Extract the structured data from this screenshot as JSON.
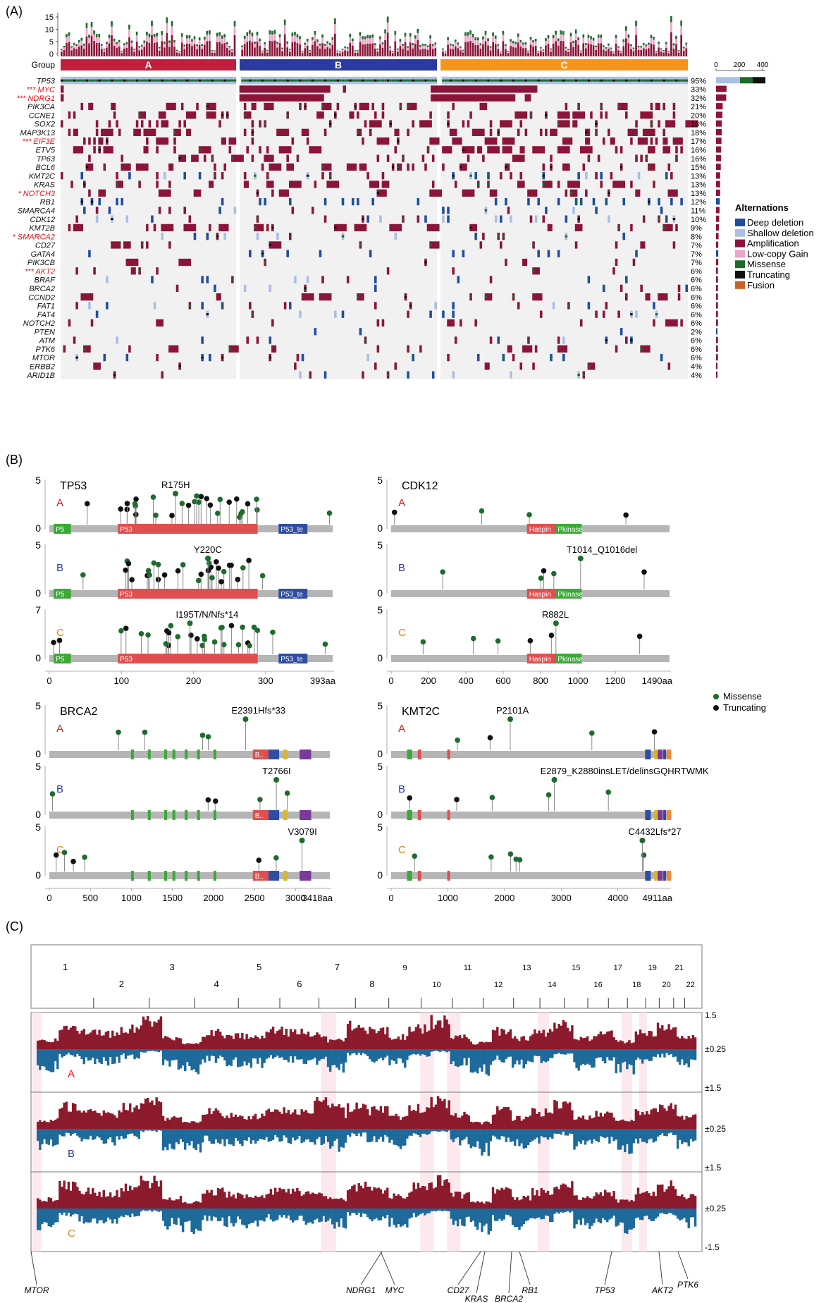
{
  "colors": {
    "deep_deletion": "#1f4e9c",
    "shallow_deletion": "#a9bfe6",
    "amplification": "#8b1538",
    "low_copy_gain": "#e9a6c9",
    "missense": "#1e6b2e",
    "truncating": "#111111",
    "fusion": "#c8622a",
    "group_a": "#c21f3e",
    "group_b": "#2b3a9e",
    "group_c": "#f7941d",
    "gain_cnv": "#8b1a2c",
    "loss_cnv": "#1d6a9b",
    "label_red": "#e8141c",
    "label_blue": "#2b3a9e",
    "label_orange": "#f07f14",
    "domain_p53": "#e04f4f",
    "domain_green": "#3aaa35",
    "domain_blue": "#2f4ea1",
    "domain_yellow": "#d9b62a",
    "domain_purple": "#7a3a9a",
    "domain_orange": "#f08a3a",
    "backbone": "#b5b5b5"
  },
  "panelA": {
    "label": "(A)",
    "group_label": "Group",
    "groups": [
      "A",
      "B",
      "C"
    ],
    "bar_ticks": [
      "15",
      "10",
      "5",
      "0"
    ],
    "scale_ticks": [
      "0",
      "200",
      "400"
    ],
    "legend_title": "Alternations",
    "legend_items": [
      {
        "label": "Deep deletion",
        "color": "deep_deletion"
      },
      {
        "label": "Shallow deletion",
        "color": "shallow_deletion"
      },
      {
        "label": "Amplification",
        "color": "amplification"
      },
      {
        "label": "Low-copy Gain",
        "color": "low_copy_gain"
      },
      {
        "label": "Missense",
        "color": "missense"
      },
      {
        "label": "Truncating",
        "color": "truncating"
      },
      {
        "label": "Fusion",
        "color": "fusion"
      }
    ],
    "genes": [
      {
        "name": "TP53",
        "pct": "95%",
        "red": false,
        "type": "tp53"
      },
      {
        "name": "*** MYC",
        "pct": "33%",
        "red": true,
        "type": "amp_block",
        "blocks": [
          [
            0.0,
            0.005
          ],
          [
            0.285,
            0.43
          ],
          [
            0.45,
            0.455
          ],
          [
            0.59,
            0.76
          ]
        ]
      },
      {
        "name": "*** NDRG1",
        "pct": "32%",
        "red": true,
        "type": "amp_block",
        "blocks": [
          [
            0.0,
            0.005
          ],
          [
            0.285,
            0.42
          ],
          [
            0.59,
            0.725
          ],
          [
            0.74,
            0.75
          ]
        ]
      },
      {
        "name": "PIK3CA",
        "pct": "21%",
        "red": false,
        "type": "sparse",
        "seed": 3,
        "density": 0.2
      },
      {
        "name": "CCNE1",
        "pct": "20%",
        "red": false,
        "type": "sparse",
        "seed": 5,
        "density": 0.2
      },
      {
        "name": "SOX2",
        "pct": "18%",
        "red": false,
        "type": "sparse",
        "seed": 7,
        "density": 0.18
      },
      {
        "name": "MAP3K13",
        "pct": "18%",
        "red": false,
        "type": "sparse",
        "seed": 11,
        "density": 0.18
      },
      {
        "name": "*** EIF3E",
        "pct": "17%",
        "red": true,
        "type": "sparse",
        "seed": 13,
        "density": 0.17
      },
      {
        "name": "ETV5",
        "pct": "16%",
        "red": false,
        "type": "sparse",
        "seed": 17,
        "density": 0.16
      },
      {
        "name": "TP63",
        "pct": "16%",
        "red": false,
        "type": "sparse",
        "seed": 19,
        "density": 0.16
      },
      {
        "name": "BCL6",
        "pct": "15%",
        "red": false,
        "type": "sparse",
        "seed": 23,
        "density": 0.15
      },
      {
        "name": "KMT2C",
        "pct": "13%",
        "red": false,
        "type": "mixed",
        "seed": 29,
        "density": 0.13
      },
      {
        "name": "KRAS",
        "pct": "13%",
        "red": false,
        "type": "sparse",
        "seed": 31,
        "density": 0.13
      },
      {
        "name": "* NOTCH3",
        "pct": "13%",
        "red": true,
        "type": "sparse",
        "seed": 37,
        "density": 0.13
      },
      {
        "name": "RB1",
        "pct": "12%",
        "red": false,
        "type": "del",
        "seed": 41,
        "density": 0.12
      },
      {
        "name": "SMARCA4",
        "pct": "11%",
        "red": false,
        "type": "mixed",
        "seed": 43,
        "density": 0.11
      },
      {
        "name": "CDK12",
        "pct": "10%",
        "red": false,
        "type": "mixed",
        "seed": 47,
        "density": 0.1
      },
      {
        "name": "KMT2B",
        "pct": "9%",
        "red": false,
        "type": "sparse",
        "seed": 53,
        "density": 0.09
      },
      {
        "name": "* SMARCA2",
        "pct": "8%",
        "red": true,
        "type": "mixed",
        "seed": 59,
        "density": 0.08
      },
      {
        "name": "CD27",
        "pct": "7%",
        "red": false,
        "type": "sparse",
        "seed": 61,
        "density": 0.07
      },
      {
        "name": "GATA4",
        "pct": "7%",
        "red": false,
        "type": "del",
        "seed": 67,
        "density": 0.07
      },
      {
        "name": "PIK3CB",
        "pct": "7%",
        "red": false,
        "type": "sparse",
        "seed": 71,
        "density": 0.07
      },
      {
        "name": "*** AKT2",
        "pct": "6%",
        "red": true,
        "type": "sparse",
        "seed": 73,
        "density": 0.06
      },
      {
        "name": "BRAF",
        "pct": "6%",
        "red": false,
        "type": "mixed",
        "seed": 79,
        "density": 0.06
      },
      {
        "name": "BRCA2",
        "pct": "6%",
        "red": false,
        "type": "mixed",
        "seed": 83,
        "density": 0.06
      },
      {
        "name": "CCND2",
        "pct": "6%",
        "red": false,
        "type": "sparse",
        "seed": 89,
        "density": 0.06
      },
      {
        "name": "FAT1",
        "pct": "6%",
        "red": false,
        "type": "mixed",
        "seed": 97,
        "density": 0.06
      },
      {
        "name": "FAT4",
        "pct": "6%",
        "red": false,
        "type": "mixed",
        "seed": 101,
        "density": 0.06
      },
      {
        "name": "NOTCH2",
        "pct": "6%",
        "red": false,
        "type": "sparse",
        "seed": 103,
        "density": 0.06
      },
      {
        "name": "PTEN",
        "pct": "2%",
        "red": false,
        "type": "del",
        "seed": 107,
        "density": 0.02
      },
      {
        "name": "ATM",
        "pct": "6%",
        "red": false,
        "type": "mixed",
        "seed": 109,
        "density": 0.06
      },
      {
        "name": "PTK6",
        "pct": "6%",
        "red": false,
        "type": "sparse",
        "seed": 113,
        "density": 0.06
      },
      {
        "name": "MTOR",
        "pct": "6%",
        "red": false,
        "type": "mixed",
        "seed": 127,
        "density": 0.06
      },
      {
        "name": "ERBB2",
        "pct": "4%",
        "red": false,
        "type": "sparse",
        "seed": 131,
        "density": 0.04
      },
      {
        "name": "ARID1B",
        "pct": "4%",
        "red": false,
        "type": "mixed",
        "seed": 137,
        "density": 0.04
      }
    ]
  },
  "panelB": {
    "label": "(B)",
    "legend": [
      {
        "label": "Missense",
        "color": "missense"
      },
      {
        "label": "Truncating",
        "color": "truncating"
      }
    ],
    "plots": [
      {
        "gene": "TP53",
        "length": 393,
        "axis_end_label": "393aa",
        "ticks": [
          "0",
          "100",
          "200",
          "300"
        ],
        "tick_vals": [
          0,
          100,
          200,
          300
        ],
        "tracks": [
          {
            "group": "A",
            "ymax": "5",
            "annotation": "R175H",
            "ann_pos": 175
          },
          {
            "group": "B",
            "ymax": "5",
            "annotation": "Y220C",
            "ann_pos": 220
          },
          {
            "group": "C",
            "ymax": "7",
            "annotation": "I195T/N/Nfs*14",
            "ann_pos": 195
          }
        ],
        "domains": [
          {
            "start": 6,
            "end": 30,
            "label": "P5",
            "color": "domain_green"
          },
          {
            "start": 95,
            "end": 289,
            "label": "P53",
            "color": "domain_p53"
          },
          {
            "start": 318,
            "end": 358,
            "label": "P53_te",
            "color": "domain_blue"
          }
        ]
      },
      {
        "gene": "CDK12",
        "length": 1490,
        "axis_end_label": "1490aa",
        "ticks": [
          "0",
          "200",
          "400",
          "600",
          "800",
          "1000",
          "1200"
        ],
        "tick_vals": [
          0,
          200,
          400,
          600,
          800,
          1000,
          1200
        ],
        "tracks": [
          {
            "group": "A",
            "ymax": "5",
            "annotation": "",
            "ann_pos": 0
          },
          {
            "group": "B",
            "ymax": "5",
            "annotation": "T1014_Q1016del",
            "ann_pos": 1014
          },
          {
            "group": "C",
            "ymax": "5",
            "annotation": "R882L",
            "ann_pos": 882
          }
        ],
        "domains": [
          {
            "start": 727,
            "end": 900,
            "label": "Haspin",
            "color": "domain_p53"
          },
          {
            "start": 880,
            "end": 1020,
            "label": "Pkinase",
            "color": "domain_green"
          }
        ]
      },
      {
        "gene": "BRCA2",
        "length": 3418,
        "axis_end_label": "3418aa",
        "ticks": [
          "0",
          "500",
          "1000",
          "1500",
          "2000",
          "2500",
          "3000"
        ],
        "tick_vals": [
          0,
          500,
          1000,
          1500,
          2000,
          2500,
          3000
        ],
        "tracks": [
          {
            "group": "A",
            "ymax": "5",
            "annotation": "E2391Hfs*33",
            "ann_pos": 2391
          },
          {
            "group": "B",
            "ymax": "5",
            "annotation": "T2766I",
            "ann_pos": 2766
          },
          {
            "group": "C",
            "ymax": "5",
            "annotation": "V3079I",
            "ann_pos": 3079
          }
        ],
        "domains": [
          {
            "start": 995,
            "end": 1030,
            "label": "",
            "color": "domain_green"
          },
          {
            "start": 1200,
            "end": 1235,
            "label": "",
            "color": "domain_green"
          },
          {
            "start": 1400,
            "end": 1435,
            "label": "",
            "color": "domain_green"
          },
          {
            "start": 1500,
            "end": 1535,
            "label": "",
            "color": "domain_green"
          },
          {
            "start": 1650,
            "end": 1685,
            "label": "",
            "color": "domain_green"
          },
          {
            "start": 1800,
            "end": 1835,
            "label": "",
            "color": "domain_green"
          },
          {
            "start": 2000,
            "end": 2035,
            "label": "",
            "color": "domain_green"
          },
          {
            "start": 2480,
            "end": 2670,
            "label": "B..",
            "color": "domain_p53"
          },
          {
            "start": 2670,
            "end": 2800,
            "label": "",
            "color": "domain_blue"
          },
          {
            "start": 2850,
            "end": 2900,
            "label": "",
            "color": "domain_yellow"
          },
          {
            "start": 3050,
            "end": 3190,
            "label": "",
            "color": "domain_purple"
          }
        ]
      },
      {
        "gene": "KMT2C",
        "length": 4911,
        "axis_end_label": "4911aa",
        "ticks": [
          "0",
          "1000",
          "2000",
          "3000",
          "4000"
        ],
        "tick_vals": [
          0,
          1000,
          2000,
          3000,
          4000
        ],
        "tracks": [
          {
            "group": "A",
            "ymax": "5",
            "annotation": "P2101A",
            "ann_pos": 2101
          },
          {
            "group": "B",
            "ymax": "5",
            "annotation": "E2879_K2880insLET/delinsGQHRTWMK",
            "ann_pos": 2879
          },
          {
            "group": "C",
            "ymax": "5",
            "annotation": "C4432Lfs*27",
            "ann_pos": 4432
          }
        ],
        "domains": [
          {
            "start": 280,
            "end": 370,
            "label": "",
            "color": "domain_green"
          },
          {
            "start": 470,
            "end": 530,
            "label": "",
            "color": "domain_p53"
          },
          {
            "start": 990,
            "end": 1040,
            "label": "",
            "color": "domain_p53"
          },
          {
            "start": 4480,
            "end": 4580,
            "label": "",
            "color": "domain_blue"
          },
          {
            "start": 4640,
            "end": 4690,
            "label": "",
            "color": "domain_yellow"
          },
          {
            "start": 4700,
            "end": 4790,
            "label": "",
            "color": "domain_purple"
          },
          {
            "start": 4800,
            "end": 4850,
            "label": "",
            "color": "domain_blue"
          },
          {
            "start": 4860,
            "end": 4940,
            "label": "",
            "color": "domain_orange"
          }
        ]
      }
    ]
  },
  "panelC": {
    "label": "(C)",
    "chromosomes": [
      "1",
      "2",
      "3",
      "4",
      "5",
      "6",
      "7",
      "8",
      "9",
      "10",
      "11",
      "12",
      "13",
      "14",
      "15",
      "16",
      "17",
      "18",
      "19",
      "20",
      "21",
      "22"
    ],
    "groups": [
      "A",
      "B",
      "C"
    ],
    "right_labels": [
      [
        "1.5",
        "±0.25",
        "±1.5"
      ],
      [
        "±0.25",
        "±1.5"
      ],
      [
        "±0.25",
        "-1.5"
      ]
    ],
    "genes_bottom": [
      "MTOR",
      "NDRG1",
      "MYC",
      "CD27",
      "KRAS",
      "BRCA2",
      "RB1",
      "TP53",
      "AKT2",
      "PTK6"
    ]
  },
  "chart_data": [
    {
      "type": "heatmap",
      "title": "",
      "rows": [
        "TP53",
        "MYC",
        "NDRG1",
        "PIK3CA",
        "CCNE1",
        "SOX2",
        "MAP3K13",
        "EIF3E",
        "ETV5",
        "TP63",
        "BCL6",
        "KMT2C",
        "KRAS",
        "NOTCH3",
        "RB1",
        "SMARCA4",
        "CDK12",
        "KMT2B",
        "SMARCA2",
        "CD27",
        "GATA4",
        "PIK3CB",
        "AKT2",
        "BRAF",
        "BRCA2",
        "CCND2",
        "FAT1",
        "FAT4",
        "NOTCH2",
        "PTEN",
        "ATM",
        "PTK6",
        "MTOR",
        "ERBB2",
        "ARID1B"
      ],
      "row_percent": [
        95,
        33,
        32,
        21,
        20,
        18,
        18,
        17,
        16,
        16,
        15,
        13,
        13,
        13,
        12,
        11,
        10,
        9,
        8,
        7,
        7,
        7,
        6,
        6,
        6,
        6,
        6,
        6,
        6,
        2,
        6,
        6,
        6,
        4,
        4
      ],
      "groups": [
        "A",
        "B",
        "C"
      ],
      "legend": [
        "Deep deletion",
        "Shallow deletion",
        "Amplification",
        "Low-copy Gain",
        "Missense",
        "Truncating",
        "Fusion"
      ]
    },
    {
      "type": "scatter",
      "title": "",
      "series": [
        {
          "name": "TP53",
          "length": 393,
          "hotspots": [
            "R175H",
            "Y220C",
            "I195T/N/Nfs*14"
          ]
        },
        {
          "name": "CDK12",
          "length": 1490,
          "hotspots": [
            "T1014_Q1016del",
            "R882L"
          ]
        },
        {
          "name": "BRCA2",
          "length": 3418,
          "hotspots": [
            "E2391Hfs*33",
            "T2766I",
            "V3079I"
          ]
        },
        {
          "name": "KMT2C",
          "length": 4911,
          "hotspots": [
            "P2101A",
            "E2879_K2880insLET/delinsGQHRTWMK",
            "C4432Lfs*27"
          ]
        }
      ]
    },
    {
      "type": "area",
      "title": "",
      "x": [
        "1",
        "2",
        "3",
        "4",
        "5",
        "6",
        "7",
        "8",
        "9",
        "10",
        "11",
        "12",
        "13",
        "14",
        "15",
        "16",
        "17",
        "18",
        "19",
        "20",
        "21",
        "22"
      ],
      "ylim": [
        -1.5,
        1.5
      ]
    }
  ]
}
